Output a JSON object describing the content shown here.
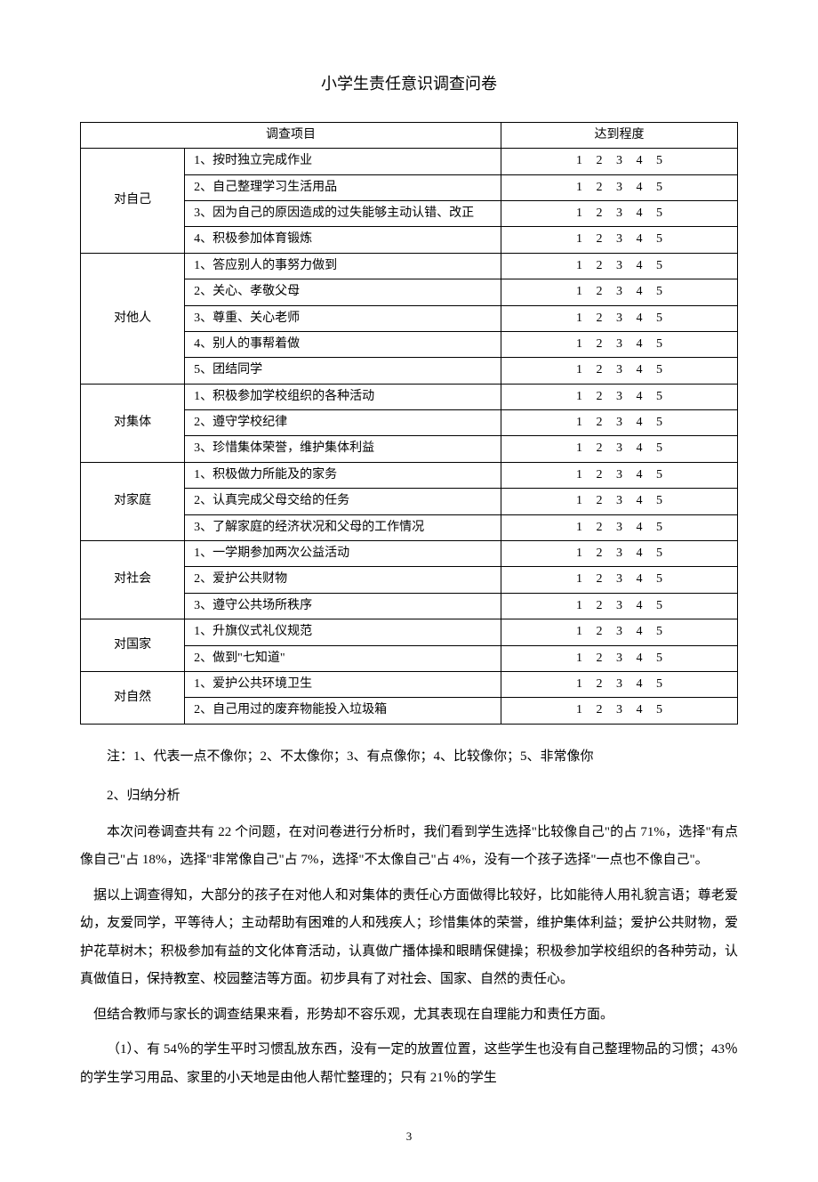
{
  "title": "小学生责任意识调查问卷",
  "table": {
    "header_project": "调查项目",
    "header_degree": "达到程度",
    "degree_scale": "1 2 3 4 5",
    "sections": [
      {
        "category": "对自己",
        "items": [
          "1、按时独立完成作业",
          "2、自己整理学习生活用品",
          "3、因为自己的原因造成的过失能够主动认错、改正",
          "4、积极参加体育锻炼"
        ]
      },
      {
        "category": "对他人",
        "items": [
          "1、答应别人的事努力做到",
          "2、关心、孝敬父母",
          "3、尊重、关心老师",
          "4、别人的事帮着做",
          "5、团结同学"
        ]
      },
      {
        "category": "对集体",
        "items": [
          "1、积极参加学校组织的各种活动",
          "2、遵守学校纪律",
          "3、珍惜集体荣誉，维护集体利益"
        ]
      },
      {
        "category": "对家庭",
        "items": [
          "1、积极做力所能及的家务",
          "2、认真完成父母交给的任务",
          "3、了解家庭的经济状况和父母的工作情况"
        ]
      },
      {
        "category": "对社会",
        "items": [
          "1、一学期参加两次公益活动",
          "2、爱护公共财物",
          "3、遵守公共场所秩序"
        ]
      },
      {
        "category": "对国家",
        "items": [
          "1、升旗仪式礼仪规范",
          "2、做到\"七知道\""
        ]
      },
      {
        "category": "对自然",
        "items": [
          "1、爱护公共环境卫生",
          "2、自己用过的废弃物能投入垃圾箱"
        ]
      }
    ]
  },
  "note": "注：1、代表一点不像你；2、不太像你；3、有点像你；4、比较像你；5、非常像你",
  "section_heading": "2、归纳分析",
  "paragraphs": [
    "本次问卷调查共有 22 个问题，在对问卷进行分析时，我们看到学生选择\"比较像自己\"的占 71%，选择\"有点像自己\"占 18%，选择\"非常像自己\"占 7%，选择\"不太像自己\"占 4%，没有一个孩子选择\"一点也不像自己\"。",
    "据以上调查得知，大部分的孩子在对他人和对集体的责任心方面做得比较好，比如能待人用礼貌言语；尊老爱幼，友爱同学，平等待人；主动帮助有困难的人和残疾人；珍惜集体的荣誉，维护集体利益；爱护公共财物，爱护花草树木；积极参加有益的文化体育活动，认真做广播体操和眼睛保健操；积极参加学校组织的各种劳动，认真做值日，保持教室、校园整洁等方面。初步具有了对社会、国家、自然的责任心。",
    "但结合教师与家长的调查结果来看，形势却不容乐观，尤其表现在自理能力和责任方面。",
    "（1）、有 54％的学生平时习惯乱放东西，没有一定的放置位置，这些学生也没有自己整理物品的习惯；43％的学生学习用品、家里的小天地是由他人帮忙整理的；只有 21％的学生"
  ],
  "page_number": "3"
}
